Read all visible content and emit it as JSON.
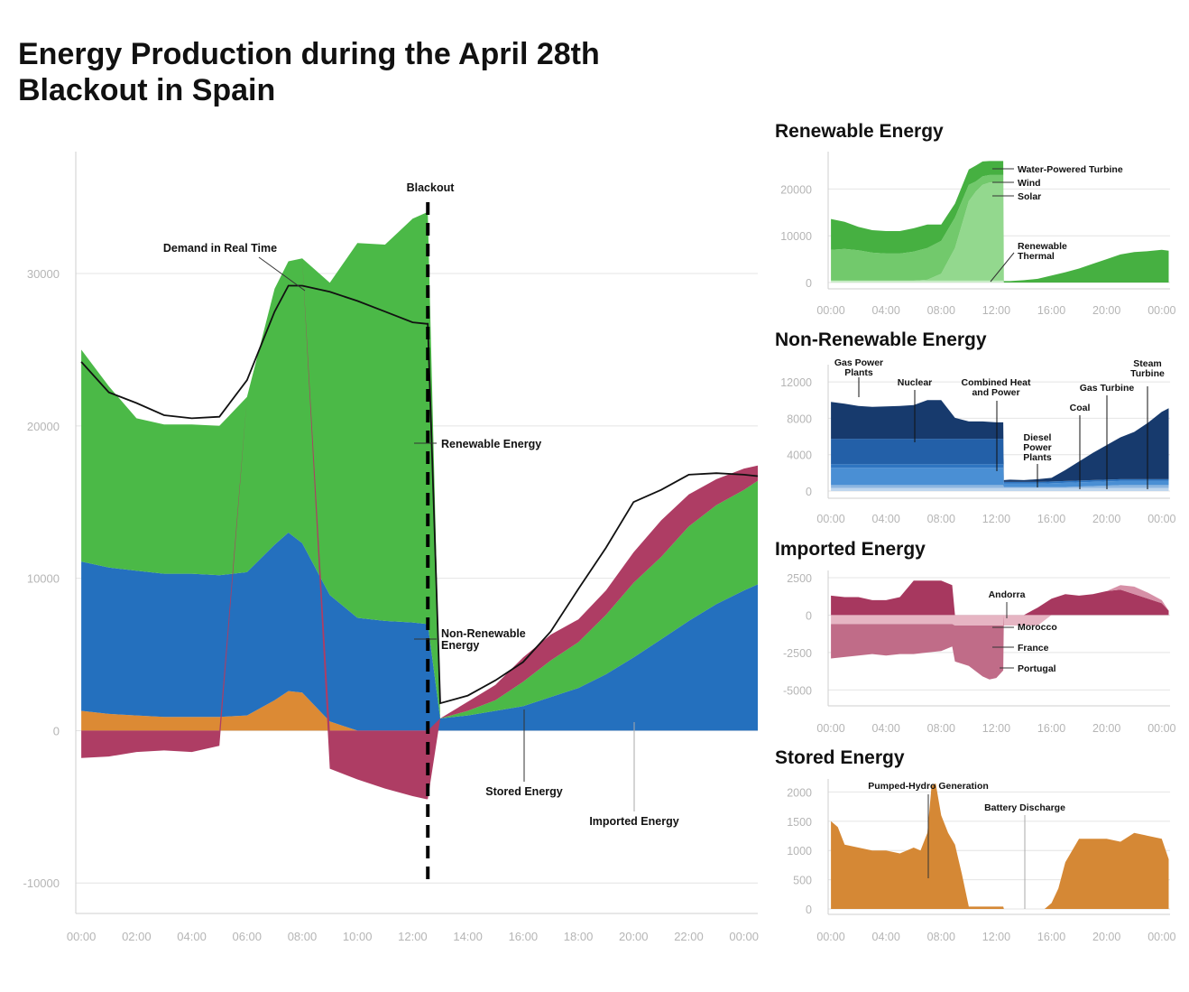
{
  "title": "Energy Production during the April 28th Blackout in Spain",
  "colors": {
    "renewable": "#4bb947",
    "non_renewable": "#2470be",
    "stored": "#dc8a34",
    "imported": "#ae3d64",
    "demand": "#111111"
  },
  "main_chart": {
    "chart_data": {
      "type": "area",
      "x_ticks": [
        "00:00",
        "02:00",
        "04:00",
        "06:00",
        "08:00",
        "10:00",
        "12:00",
        "14:00",
        "16:00",
        "18:00",
        "20:00",
        "22:00",
        "00:00"
      ],
      "y_ticks": [
        "30000",
        "20000",
        "10000",
        "0",
        "-10000"
      ],
      "ylim": [
        -12000,
        38000
      ],
      "xlim_hours": [
        -0.2,
        24.5
      ],
      "blackout_hour": 12.55,
      "annotations": {
        "blackout": "Blackout",
        "demand": "Demand in Real Time",
        "renewable": "Renewable Energy",
        "non_renewable": "Non-Renewable Energy",
        "stored": "Stored Energy",
        "imported": "Imported Energy"
      },
      "hours": [
        0,
        1,
        2,
        3,
        4,
        5,
        6,
        7,
        7.5,
        8,
        9,
        10,
        11,
        12,
        12.5,
        12.55,
        13,
        14,
        15,
        16,
        17,
        18,
        19,
        20,
        21,
        22,
        23,
        24,
        24.5
      ],
      "series": [
        {
          "name": "Stored Energy",
          "values": [
            1300,
            1100,
            1000,
            900,
            900,
            900,
            1000,
            2000,
            2600,
            2500,
            600,
            0,
            0,
            0,
            0,
            0,
            0,
            0,
            0,
            0,
            0,
            0,
            0,
            0,
            0,
            0,
            0,
            0,
            0
          ]
        },
        {
          "name": "Non-Renewable Energy",
          "values": [
            9800,
            9600,
            9500,
            9400,
            9400,
            9300,
            9400,
            10200,
            10400,
            9800,
            8300,
            7400,
            7200,
            7100,
            7000,
            7000,
            800,
            1000,
            1300,
            1600,
            2200,
            2800,
            3700,
            4800,
            6000,
            7200,
            8300,
            9200,
            9600
          ]
        },
        {
          "name": "Renewable Energy",
          "values": [
            13900,
            11900,
            10000,
            9800,
            9800,
            9800,
            11500,
            16800,
            17800,
            18700,
            20500,
            24600,
            24700,
            26500,
            27000,
            27000,
            0,
            300,
            700,
            1600,
            2400,
            3000,
            3900,
            4900,
            5400,
            6200,
            6500,
            6600,
            6800
          ]
        },
        {
          "name": "Imported Energy",
          "values": [
            -1800,
            -1700,
            -1400,
            -1300,
            -1400,
            -1000,
            0,
            0,
            0,
            0,
            -2500,
            -3200,
            -3800,
            -4300,
            -4500,
            -4500,
            0,
            600,
            1000,
            1600,
            1700,
            1500,
            1600,
            2000,
            2400,
            2100,
            1700,
            1400,
            1000
          ]
        }
      ],
      "demand": [
        24200,
        22200,
        21500,
        20700,
        20500,
        20600,
        23000,
        27500,
        29200,
        29200,
        28800,
        28200,
        27500,
        26800,
        26700,
        26700,
        1800,
        2300,
        3300,
        4500,
        6500,
        9300,
        12000,
        15000,
        15800,
        16800,
        16900,
        16800,
        16700
      ]
    }
  },
  "panels": {
    "renewable": {
      "title": "Renewable Energy",
      "chart_data": {
        "type": "area",
        "x_ticks": [
          "00:00",
          "04:00",
          "08:00",
          "12:00",
          "16:00",
          "20:00",
          "00:00"
        ],
        "y_ticks": [
          "20000",
          "10000",
          "0"
        ],
        "ylim": [
          0,
          28000
        ],
        "hours": [
          0,
          1,
          2,
          3,
          4,
          5,
          6,
          7,
          8,
          9,
          10,
          10.5,
          11,
          11.5,
          12,
          12.5,
          12.55,
          13,
          14,
          15,
          16,
          17,
          18,
          19,
          20,
          21,
          22,
          23,
          24,
          24.5
        ],
        "series": [
          {
            "name": "Renewable Thermal",
            "values": [
              400,
              400,
              400,
              400,
              400,
              400,
              400,
              400,
              400,
              400,
              400,
              400,
              400,
              400,
              400,
              400,
              0,
              0,
              0,
              0,
              0,
              0,
              0,
              0,
              0,
              0,
              0,
              0,
              0,
              0
            ]
          },
          {
            "name": "Solar",
            "values": [
              0,
              0,
              0,
              0,
              0,
              0,
              0,
              200,
              1500,
              7000,
              17000,
              19000,
              20500,
              21000,
              21000,
              21000,
              0,
              0,
              0,
              0,
              0,
              0,
              0,
              0,
              0,
              0,
              0,
              0,
              0,
              0
            ]
          },
          {
            "name": "Wind",
            "values": [
              6600,
              6800,
              6500,
              6000,
              5800,
              5800,
              6200,
              6800,
              7000,
              6500,
              3500,
              2200,
              1800,
              1600,
              1600,
              1600,
              0,
              0,
              0,
              0,
              0,
              0,
              0,
              0,
              0,
              0,
              0,
              0,
              0,
              0
            ]
          },
          {
            "name": "Water-Powered Turbine",
            "values": [
              6600,
              5800,
              5000,
              4800,
              4800,
              4800,
              5000,
              5000,
              3500,
              3000,
              3300,
              3400,
              3200,
              3000,
              3000,
              3000,
              300,
              300,
              500,
              800,
              1500,
              2200,
              3000,
              4000,
              5000,
              6000,
              6500,
              6700,
              7000,
              6800
            ]
          }
        ],
        "annotations": [
          "Water-Powered Turbine",
          "Wind",
          "Solar",
          "Renewable\nThermal"
        ]
      }
    },
    "non_renewable": {
      "title": "Non-Renewable Energy",
      "chart_data": {
        "type": "area",
        "x_ticks": [
          "00:00",
          "04:00",
          "08:00",
          "12:00",
          "16:00",
          "20:00",
          "00:00"
        ],
        "y_ticks": [
          "12000",
          "8000",
          "4000",
          "0"
        ],
        "ylim": [
          0,
          13000
        ],
        "hours": [
          0,
          1,
          2,
          3,
          4,
          5,
          6,
          7,
          8,
          9,
          10,
          11,
          12,
          12.5,
          12.55,
          13,
          14,
          15,
          16,
          17,
          18,
          19,
          20,
          21,
          22,
          23,
          24,
          24.5
        ],
        "series": [
          {
            "name": "Diesel Power Plants",
            "values": [
              350,
              350,
              350,
              350,
              350,
              350,
              350,
              350,
              350,
              350,
              350,
              350,
              350,
              350,
              350,
              350,
              350,
              350,
              350,
              350,
              350,
              350,
              350,
              350,
              350,
              350,
              350,
              350
            ]
          },
          {
            "name": "Coal",
            "values": [
              300,
              300,
              300,
              300,
              300,
              300,
              300,
              300,
              300,
              300,
              300,
              300,
              300,
              300,
              100,
              100,
              100,
              100,
              100,
              100,
              150,
              200,
              250,
              300,
              300,
              300,
              300,
              300
            ]
          },
          {
            "name": "Combined Heat and Power",
            "values": [
              1900,
              1900,
              1900,
              1900,
              1900,
              1900,
              1900,
              1900,
              1900,
              1900,
              1900,
              1900,
              1900,
              1900,
              350,
              350,
              350,
              350,
              400,
              450,
              450,
              450,
              450,
              450,
              450,
              450,
              450,
              450
            ]
          },
          {
            "name": "Gas Turbine",
            "values": [
              400,
              400,
              400,
              400,
              400,
              400,
              400,
              400,
              400,
              400,
              400,
              400,
              400,
              400,
              200,
              200,
              200,
              200,
              200,
              200,
              200,
              200,
              200,
              200,
              200,
              200,
              200,
              200
            ]
          },
          {
            "name": "Nuclear",
            "values": [
              2800,
              2800,
              2800,
              2800,
              2800,
              2800,
              2800,
              2800,
              2800,
              2800,
              2800,
              2800,
              2800,
              2800,
              0,
              0,
              0,
              0,
              0,
              0,
              0,
              0,
              0,
              0,
              0,
              0,
              0,
              0
            ]
          },
          {
            "name": "Steam Turbine",
            "values": [
              0,
              0,
              0,
              0,
              0,
              0,
              0,
              0,
              0,
              0,
              0,
              0,
              0,
              0,
              0,
              0,
              0,
              0,
              0,
              0,
              0,
              0,
              0,
              0,
              0,
              0,
              0,
              0
            ]
          },
          {
            "name": "Gas Power Plants",
            "values": [
              4050,
              3850,
              3600,
              3500,
              3550,
              3600,
              3700,
              4250,
              4250,
              2300,
              1900,
              1900,
              1800,
              1800,
              200,
              250,
              200,
              300,
              400,
              1200,
              2100,
              3000,
              3800,
              4600,
              5200,
              6200,
              7400,
              7800
            ]
          }
        ],
        "annotations": [
          "Gas Power\nPlants",
          "Nuclear",
          "Combined Heat\nand Power",
          "Coal",
          "Diesel\nPower\nPlants",
          "Gas Turbine",
          "Steam\nTurbine"
        ]
      }
    },
    "imported": {
      "title": "Imported Energy",
      "chart_data": {
        "type": "area",
        "x_ticks": [
          "00:00",
          "04:00",
          "08:00",
          "12:00",
          "16:00",
          "20:00",
          "00:00"
        ],
        "y_ticks": [
          "2500",
          "0",
          "-2500",
          "-5000"
        ],
        "ylim": [
          -5400,
          2800
        ],
        "hours": [
          0,
          1,
          2,
          3,
          4,
          5,
          6,
          7,
          8,
          8.8,
          9,
          10,
          11,
          11.5,
          12,
          12.5,
          12.55,
          13,
          14,
          15,
          16,
          17,
          18,
          19,
          20,
          21,
          22,
          23,
          24,
          24.5
        ],
        "series": [
          {
            "name": "Morocco",
            "values": [
              -600,
              -600,
              -600,
              -600,
              -600,
              -600,
              -600,
              -600,
              -600,
              -600,
              -700,
              -700,
              -700,
              -700,
              -700,
              -700,
              -700,
              -700,
              -700,
              -700,
              0,
              0,
              0,
              0,
              0,
              0,
              0,
              0,
              0,
              0
            ]
          },
          {
            "name": "France",
            "values": [
              1300,
              1200,
              1200,
              1000,
              1000,
              1200,
              2300,
              2300,
              2300,
              2000,
              0,
              0,
              0,
              0,
              0,
              0,
              0,
              0,
              0,
              500,
              1100,
              1400,
              1300,
              1400,
              1600,
              1700,
              1400,
              1100,
              800,
              300
            ]
          },
          {
            "name": "Portugal",
            "values": [
              -2300,
              -2200,
              -2100,
              -2000,
              -2100,
              -2000,
              -2000,
              -1900,
              -1800,
              -1500,
              -2400,
              -2700,
              -3400,
              -3600,
              -3500,
              -3000,
              0,
              0,
              0,
              0,
              0,
              0,
              0,
              0,
              0,
              0,
              0,
              0,
              0,
              0
            ]
          },
          {
            "name": "Andorra",
            "values": [
              0,
              0,
              0,
              0,
              0,
              0,
              0,
              0,
              0,
              0,
              0,
              0,
              0,
              0,
              0,
              0,
              0,
              0,
              0,
              0,
              0,
              0,
              0,
              0,
              0,
              300,
              500,
              400,
              200,
              0
            ]
          }
        ],
        "annotations": [
          "Andorra",
          "Morocco",
          "France",
          "Portugal"
        ]
      }
    },
    "stored": {
      "title": "Stored Energy",
      "chart_data": {
        "type": "area",
        "x_ticks": [
          "00:00",
          "04:00",
          "08:00",
          "12:00",
          "16:00",
          "20:00",
          "00:00"
        ],
        "y_ticks": [
          "2000",
          "1500",
          "1000",
          "500",
          "0"
        ],
        "ylim": [
          0,
          2300
        ],
        "hours": [
          0,
          0.5,
          1,
          2,
          3,
          4,
          5,
          6,
          6.5,
          7,
          7.3,
          7.6,
          8,
          8.5,
          9,
          9.5,
          10,
          11,
          12,
          12.5,
          12.55,
          13,
          14,
          15,
          15.5,
          16,
          16.5,
          17,
          18,
          19,
          20,
          21,
          22,
          23,
          24,
          24.5
        ],
        "series": [
          {
            "name": "Pumped-Hydro Generation",
            "values": [
              1500,
              1400,
              1100,
              1050,
              1000,
              1000,
              950,
              1050,
              1000,
              1300,
              2100,
              2150,
              1600,
              1300,
              1100,
              600,
              40,
              40,
              40,
              40,
              0,
              0,
              0,
              0,
              0,
              100,
              350,
              800,
              1200,
              1200,
              1200,
              1150,
              1300,
              1250,
              1200,
              850
            ]
          },
          {
            "name": "Battery Discharge",
            "values": [
              0,
              0,
              0,
              0,
              0,
              0,
              0,
              0,
              0,
              0,
              0,
              0,
              0,
              0,
              0,
              0,
              0,
              0,
              0,
              0,
              0,
              0,
              0,
              0,
              0,
              0,
              0,
              0,
              0,
              0,
              0,
              0,
              0,
              0,
              0,
              0
            ]
          }
        ],
        "annotations": [
          "Pumped-Hydro Generation",
          "Battery Discharge"
        ]
      }
    }
  }
}
